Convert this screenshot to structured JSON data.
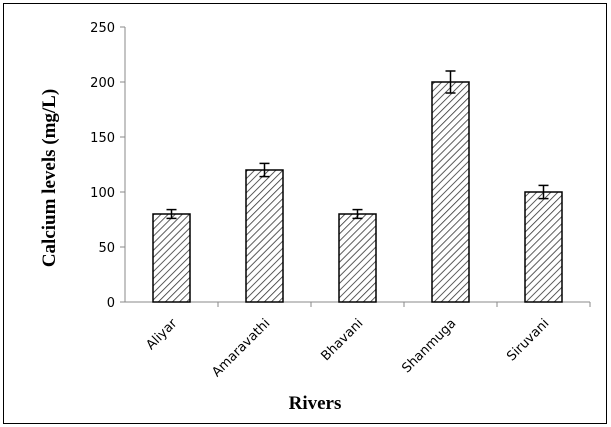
{
  "chart_data": {
    "type": "bar",
    "categories": [
      "Aliyar",
      "Amaravathi",
      "Bhavani",
      "Shanmuga",
      "Siruvani"
    ],
    "values": [
      80,
      120,
      80,
      200,
      100
    ],
    "errors": [
      4,
      6,
      4,
      10,
      6
    ],
    "xlabel": "Rivers",
    "ylabel": "Calcium levels (mg/L)",
    "ylim": [
      0,
      250
    ],
    "yticks": [
      0,
      50,
      100,
      150,
      200,
      250
    ],
    "grid": false,
    "bar_fill": "hatched",
    "bar_color": "#000000"
  }
}
